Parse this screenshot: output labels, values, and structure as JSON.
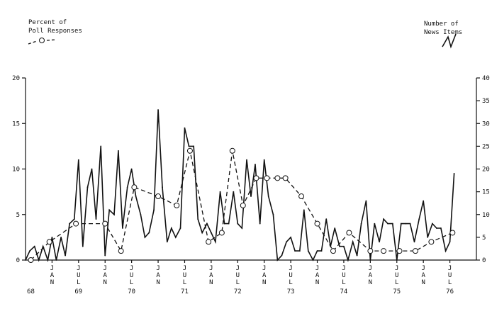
{
  "chart_data": {
    "type": "line",
    "legend": {
      "poll_label_line1": "Percent of",
      "poll_label_line2": "Poll Responses",
      "news_label_line1": "Number of",
      "news_label_line2": "News Items"
    },
    "left_axis": {
      "ylim": [
        0,
        20
      ],
      "ticks": [
        "0",
        "5",
        "10",
        "15",
        "20"
      ]
    },
    "right_axis": {
      "ylim": [
        0,
        40
      ],
      "ticks": [
        "0",
        "5",
        "10",
        "15",
        "20",
        "25",
        "30",
        "35",
        "40"
      ]
    },
    "x_axis": {
      "xlim": [
        1968.0,
        1976.5
      ],
      "month_ticks": [
        {
          "x": 1968.5,
          "label": "JAN"
        },
        {
          "x": 1969.0,
          "label": "JUL"
        },
        {
          "x": 1969.5,
          "label": "JAN"
        },
        {
          "x": 1970.0,
          "label": "JUL"
        },
        {
          "x": 1970.5,
          "label": "JAN"
        },
        {
          "x": 1971.0,
          "label": "JUL"
        },
        {
          "x": 1971.5,
          "label": "JAN"
        },
        {
          "x": 1972.0,
          "label": "JUL"
        },
        {
          "x": 1972.5,
          "label": "JAN"
        },
        {
          "x": 1973.0,
          "label": "JUL"
        },
        {
          "x": 1973.5,
          "label": "JAN"
        },
        {
          "x": 1974.0,
          "label": "JUL"
        },
        {
          "x": 1974.5,
          "label": "JAN"
        },
        {
          "x": 1975.0,
          "label": "JUL"
        },
        {
          "x": 1975.5,
          "label": "JAN"
        },
        {
          "x": 1976.0,
          "label": "JUL"
        }
      ],
      "year_labels": [
        {
          "x": 1968.1,
          "label": "68"
        },
        {
          "x": 1969.0,
          "label": "69"
        },
        {
          "x": 1970.0,
          "label": "70"
        },
        {
          "x": 1971.0,
          "label": "71"
        },
        {
          "x": 1972.0,
          "label": "72"
        },
        {
          "x": 1973.0,
          "label": "73"
        },
        {
          "x": 1974.0,
          "label": "74"
        },
        {
          "x": 1975.0,
          "label": "75"
        },
        {
          "x": 1976.0,
          "label": "76"
        }
      ]
    },
    "series": [
      {
        "style": "solid",
        "axis": "right",
        "x": [
          1968.0,
          1968.08,
          1968.17,
          1968.25,
          1968.33,
          1968.42,
          1968.5,
          1968.58,
          1968.67,
          1968.75,
          1968.83,
          1968.92,
          1969.0,
          1969.08,
          1969.17,
          1969.25,
          1969.33,
          1969.42,
          1969.5,
          1969.58,
          1969.67,
          1969.75,
          1969.83,
          1969.92,
          1970.0,
          1970.08,
          1970.17,
          1970.25,
          1970.33,
          1970.42,
          1970.5,
          1970.58,
          1970.67,
          1970.75,
          1970.83,
          1970.92,
          1971.0,
          1971.08,
          1971.17,
          1971.25,
          1971.33,
          1971.42,
          1971.5,
          1971.58,
          1971.67,
          1971.75,
          1971.83,
          1971.92,
          1972.0,
          1972.08,
          1972.17,
          1972.25,
          1972.33,
          1972.42,
          1972.5,
          1972.58,
          1972.67,
          1972.75,
          1972.83,
          1972.92,
          1973.0,
          1973.08,
          1973.17,
          1973.25,
          1973.33,
          1973.42,
          1973.5,
          1973.58,
          1973.67,
          1973.75,
          1973.83,
          1973.92,
          1974.0,
          1974.08,
          1974.17,
          1974.25,
          1974.33,
          1974.42,
          1974.5,
          1974.58,
          1974.67,
          1974.75,
          1974.83,
          1974.92,
          1975.0,
          1975.08,
          1975.17,
          1975.25,
          1975.33,
          1975.42,
          1975.5,
          1975.58,
          1975.67,
          1975.75,
          1975.83,
          1975.92,
          1976.0,
          1976.08
        ],
        "values": [
          0,
          2,
          3,
          0,
          3,
          0,
          5,
          0,
          5,
          1,
          8,
          9,
          22,
          3,
          16,
          20,
          9,
          25,
          1,
          11,
          10,
          24,
          7,
          16,
          20,
          14,
          10,
          5,
          6,
          11,
          33,
          16,
          4,
          7,
          5,
          7,
          29,
          25,
          25,
          9,
          6,
          8,
          6,
          4,
          15,
          8,
          8,
          15,
          8,
          7,
          22,
          14,
          21,
          8,
          22,
          14,
          10,
          0,
          1,
          4,
          5,
          2,
          2,
          11,
          2,
          0,
          2,
          2,
          9,
          3,
          7,
          3,
          3,
          0,
          4,
          1,
          8,
          13,
          0,
          8,
          4,
          9,
          8,
          8,
          0,
          8,
          8,
          8,
          4,
          9,
          13,
          5,
          8,
          7,
          7,
          2,
          4,
          19
        ]
      },
      {
        "style": "dashed",
        "axis": "left",
        "markers": "open-circle",
        "x": [
          1968.1,
          1968.45,
          1968.95,
          1969.5,
          1969.8,
          1970.05,
          1970.5,
          1970.85,
          1971.1,
          1971.45,
          1971.7,
          1971.9,
          1972.1,
          1972.35,
          1972.55,
          1972.75,
          1972.9,
          1973.2,
          1973.5,
          1973.8,
          1974.1,
          1974.5,
          1974.75,
          1975.05,
          1975.35,
          1975.65,
          1976.05
        ],
        "values": [
          0,
          2,
          4,
          4,
          1,
          8,
          7,
          6,
          12,
          2,
          3,
          12,
          6,
          9,
          9,
          9,
          9,
          7,
          4,
          1,
          3,
          1,
          1,
          1,
          1,
          2,
          3
        ]
      }
    ]
  }
}
